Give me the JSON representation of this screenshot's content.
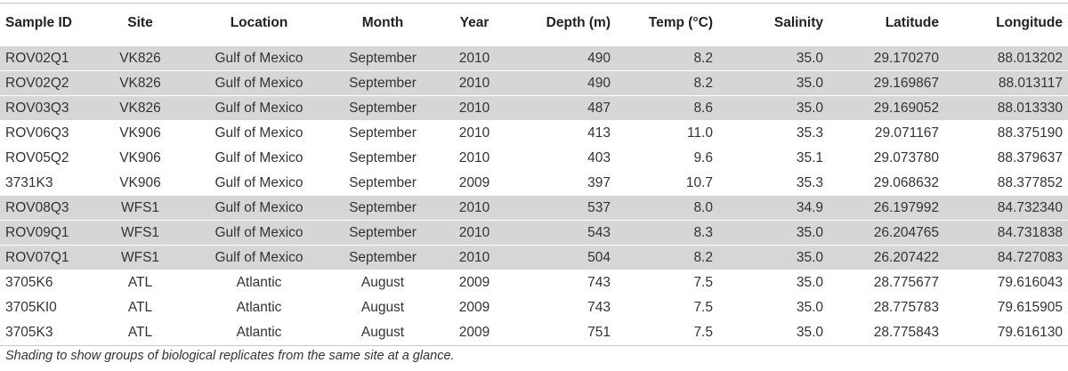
{
  "table": {
    "headers": [
      "Sample ID",
      "Site",
      "Location",
      "Month",
      "Year",
      "Depth (m)",
      "Temp (°C)",
      "Salinity",
      "Latitude",
      "Longitude"
    ],
    "rows": [
      {
        "shaded": true,
        "cells": [
          "ROV02Q1",
          "VK826",
          "Gulf of Mexico",
          "September",
          "2010",
          "490",
          "8.2",
          "35.0",
          "29.170270",
          "88.013202"
        ]
      },
      {
        "shaded": true,
        "cells": [
          "ROV02Q2",
          "VK826",
          "Gulf of Mexico",
          "September",
          "2010",
          "490",
          "8.2",
          "35.0",
          "29.169867",
          "88.013117"
        ]
      },
      {
        "shaded": true,
        "cells": [
          "ROV03Q3",
          "VK826",
          "Gulf of Mexico",
          "September",
          "2010",
          "487",
          "8.6",
          "35.0",
          "29.169052",
          "88.013330"
        ]
      },
      {
        "shaded": false,
        "cells": [
          "ROV06Q3",
          "VK906",
          "Gulf of Mexico",
          "September",
          "2010",
          "413",
          "11.0",
          "35.3",
          "29.071167",
          "88.375190"
        ]
      },
      {
        "shaded": false,
        "cells": [
          "ROV05Q2",
          "VK906",
          "Gulf of Mexico",
          "September",
          "2010",
          "403",
          "9.6",
          "35.1",
          "29.073780",
          "88.379637"
        ]
      },
      {
        "shaded": false,
        "cells": [
          "3731K3",
          "VK906",
          "Gulf of Mexico",
          "September",
          "2009",
          "397",
          "10.7",
          "35.3",
          "29.068632",
          "88.377852"
        ]
      },
      {
        "shaded": true,
        "cells": [
          "ROV08Q3",
          "WFS1",
          "Gulf of Mexico",
          "September",
          "2010",
          "537",
          "8.0",
          "34.9",
          "26.197992",
          "84.732340"
        ]
      },
      {
        "shaded": true,
        "cells": [
          "ROV09Q1",
          "WFS1",
          "Gulf of Mexico",
          "September",
          "2010",
          "543",
          "8.3",
          "35.0",
          "26.204765",
          "84.731838"
        ]
      },
      {
        "shaded": true,
        "cells": [
          "ROV07Q1",
          "WFS1",
          "Gulf of Mexico",
          "September",
          "2010",
          "504",
          "8.2",
          "35.0",
          "26.207422",
          "84.727083"
        ]
      },
      {
        "shaded": false,
        "cells": [
          "3705K6",
          "ATL",
          "Atlantic",
          "August",
          "2009",
          "743",
          "7.5",
          "35.0",
          "28.775677",
          "79.616043"
        ]
      },
      {
        "shaded": false,
        "cells": [
          "3705KI0",
          "ATL",
          "Atlantic",
          "August",
          "2009",
          "743",
          "7.5",
          "35.0",
          "28.775783",
          "79.615905"
        ]
      },
      {
        "shaded": false,
        "cells": [
          "3705K3",
          "ATL",
          "Atlantic",
          "August",
          "2009",
          "751",
          "7.5",
          "35.0",
          "28.775843",
          "79.616130"
        ]
      }
    ],
    "shade_color": "#d6d6d6"
  },
  "footnote": "Shading to show groups of biological replicates from the same site at a glance."
}
